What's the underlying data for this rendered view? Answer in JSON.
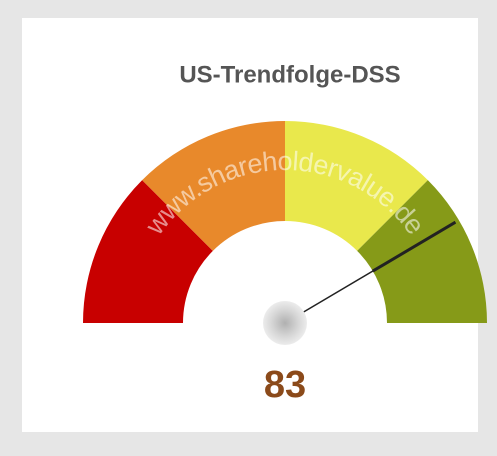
{
  "chart_data": {
    "type": "gauge",
    "title": "US-Trendfolge-DSS",
    "watermark": "www.shareholdervalue.de",
    "value": 83,
    "range": [
      0,
      100
    ],
    "bands": [
      {
        "from": 0,
        "to": 25,
        "color": "#c80000"
      },
      {
        "from": 25,
        "to": 50,
        "color": "#e8892b"
      },
      {
        "from": 50,
        "to": 75,
        "color": "#e9e84c"
      },
      {
        "from": 75,
        "to": 100,
        "color": "#869a18"
      }
    ],
    "needle_color": "#222222",
    "value_color": "#8b4a1a"
  }
}
